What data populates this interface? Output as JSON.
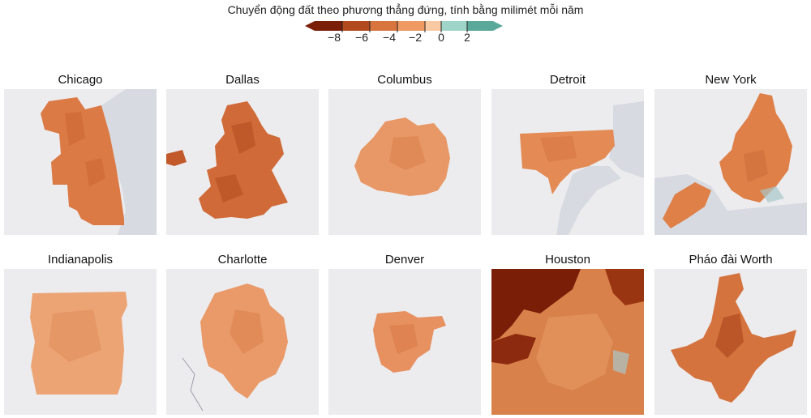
{
  "legend": {
    "title": "Chuyển động đất theo phương thẳng đứng, tính bằng milimét mỗi năm",
    "ticks": [
      "−8",
      "−6",
      "−4",
      "−2",
      "0",
      "2"
    ],
    "colors": [
      "#7a1e08",
      "#b14a1e",
      "#d8753f",
      "#ee9a62",
      "#f8c9a3",
      "#9fd5c8",
      "#5aa89a"
    ]
  },
  "cities": [
    {
      "name": "Chicago",
      "fill": "#db7a45",
      "speckle": "#c9622e"
    },
    {
      "name": "Dallas",
      "fill": "#d06a38",
      "speckle": "#b24a1f"
    },
    {
      "name": "Columbus",
      "fill": "#e89866",
      "speckle": "#d87a46"
    },
    {
      "name": "Detroit",
      "fill": "#e38a55",
      "speckle": "#cf6c38"
    },
    {
      "name": "New York",
      "fill": "#de8048",
      "speckle": "#c86532"
    },
    {
      "name": "Indianapolis",
      "fill": "#eca475",
      "speckle": "#dd8450"
    },
    {
      "name": "Charlotte",
      "fill": "#e99a68",
      "speckle": "#d47a44"
    },
    {
      "name": "Denver",
      "fill": "#e79060",
      "speckle": "#d27440"
    },
    {
      "name": "Houston",
      "fill": "#d8814a",
      "speckle": "#7a1e08"
    },
    {
      "name": "Pháo đài Worth",
      "fill": "#d5733e",
      "speckle": "#a94219"
    }
  ]
}
